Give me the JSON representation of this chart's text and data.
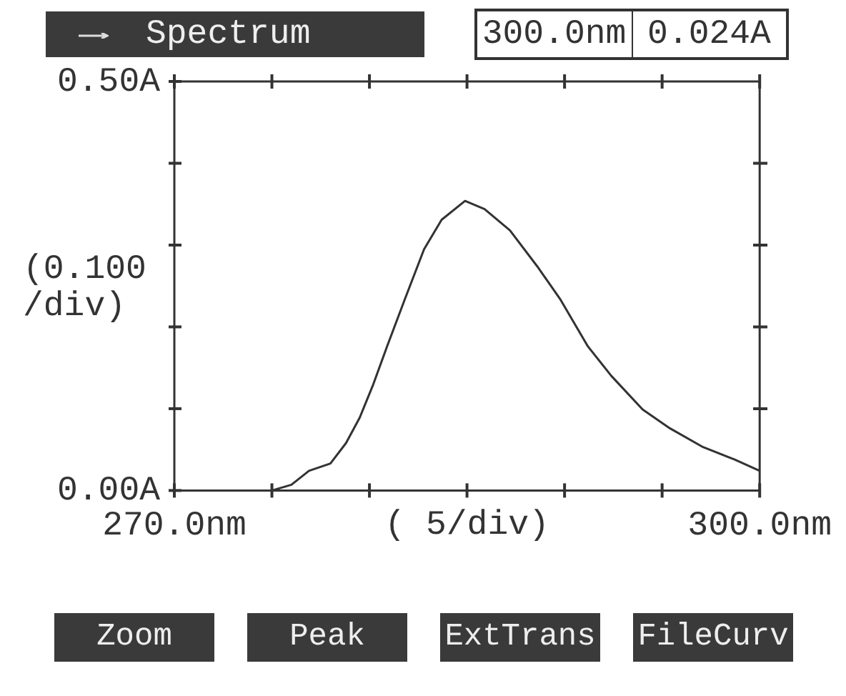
{
  "chart_data": {
    "type": "line",
    "title": "Spectrum",
    "xlabel": "( 5/div)",
    "ylabel": "(0.100 /div)",
    "annotations": [
      "300.0nm",
      "0.024A",
      "Zoom",
      "Peak",
      "ExtTrans",
      "FileCurv"
    ],
    "x": [
      275.0,
      276.0,
      276.9,
      278.0,
      278.8,
      279.5,
      280.2,
      280.9,
      281.8,
      282.8,
      283.7,
      284.9,
      285.9,
      287.2,
      288.6,
      289.8,
      291.2,
      292.4,
      294.0,
      295.4,
      297.1,
      298.7,
      300.0
    ],
    "series": [
      {
        "color": "#333333",
        "values": [
          0.0,
          0.007,
          0.024,
          0.033,
          0.058,
          0.089,
          0.13,
          0.176,
          0.233,
          0.295,
          0.331,
          0.354,
          0.344,
          0.318,
          0.274,
          0.233,
          0.176,
          0.14,
          0.099,
          0.076,
          0.053,
          0.038,
          0.024
        ]
      }
    ],
    "xlim": [
      270,
      300
    ],
    "xticks": [
      {
        "value": 270,
        "label": "270.0nm"
      },
      {
        "value": 275,
        "label": null
      },
      {
        "value": 280,
        "label": null
      },
      {
        "value": 285,
        "label": null
      },
      {
        "value": 290,
        "label": null
      },
      {
        "value": 295,
        "label": null
      },
      {
        "value": 300,
        "label": "300.0nm"
      }
    ],
    "ylim": [
      0,
      0.5
    ],
    "yticks": [
      {
        "value": 0,
        "label": "0.00A"
      },
      {
        "value": 0.1,
        "label": null
      },
      {
        "value": 0.2,
        "label": null
      },
      {
        "value": 0.3,
        "label": null
      },
      {
        "value": 0.4,
        "label": null
      },
      {
        "value": 0.5,
        "label": "0.50A"
      }
    ],
    "grid": false,
    "legend": false,
    "marker": "none",
    "line_style": "solid"
  }
}
